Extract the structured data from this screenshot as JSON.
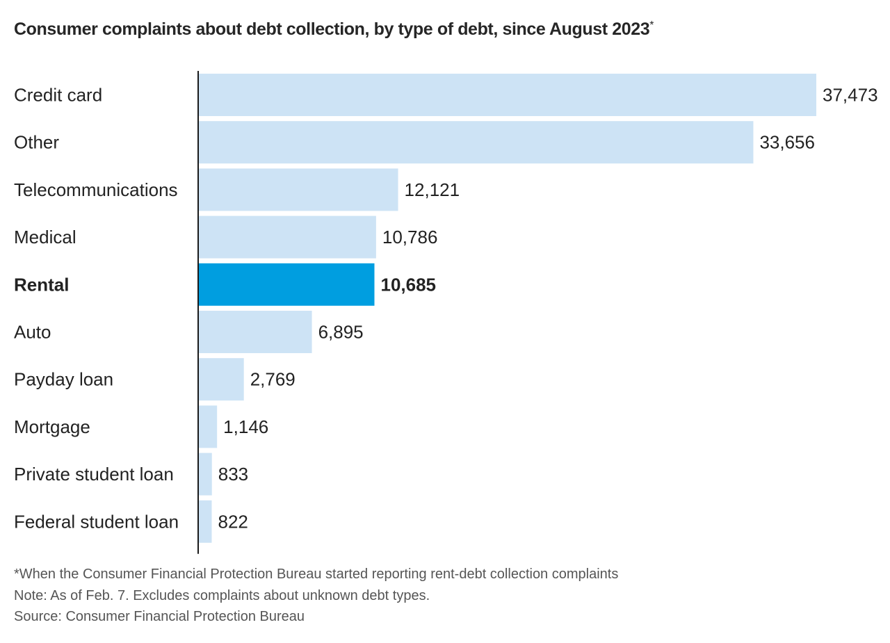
{
  "chart_data": {
    "type": "bar",
    "orientation": "horizontal",
    "title": "Consumer complaints about debt collection, by type of debt, since August 2023",
    "title_marker": "*",
    "categories": [
      "Credit card",
      "Other",
      "Telecommunications",
      "Medical",
      "Rental",
      "Auto",
      "Payday loan",
      "Mortgage",
      "Private student loan",
      "Federal student loan"
    ],
    "values": [
      37473,
      33656,
      12121,
      10786,
      10685,
      6895,
      2769,
      1146,
      833,
      822
    ],
    "value_labels": [
      "37,473",
      "33,656",
      "12,121",
      "10,786",
      "10,685",
      "6,895",
      "2,769",
      "1,146",
      "833",
      "822"
    ],
    "highlight": "Rental",
    "xlim": [
      0,
      37473
    ],
    "xlabel": "",
    "ylabel": "",
    "grid": false,
    "colors": {
      "bar": "#cde3f5",
      "highlight_bar": "#009ee0",
      "axis": "#1a1a1a"
    }
  },
  "footnotes": {
    "asterisk": "*When the Consumer Financial Protection Bureau started reporting rent-debt collection complaints",
    "note": "Note: As of Feb. 7. Excludes complaints about unknown debt types.",
    "source": "Source: Consumer Financial Protection Bureau"
  }
}
